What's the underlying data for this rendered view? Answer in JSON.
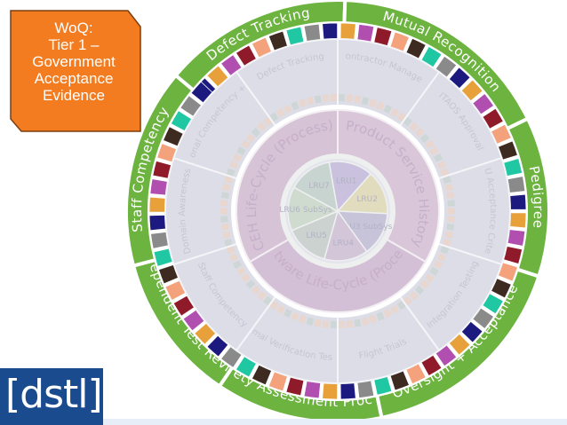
{
  "callout": {
    "lines": [
      "WoQ:",
      "Tier 1 –",
      "Government",
      "Acceptance",
      "Evidence"
    ]
  },
  "logo": {
    "text": "[dstl]"
  },
  "outer_ring": {
    "segments": [
      {
        "label": "Defect Tracking"
      },
      {
        "label": "Mutual Recognition"
      },
      {
        "label": "Pedigree"
      },
      {
        "label": "Oversight + Acceptance"
      },
      {
        "label": "Safety Assessment Process"
      },
      {
        "label": "Independent Test Review"
      },
      {
        "label": "Staff Competency"
      }
    ]
  },
  "middle_ring": {
    "segments": [
      {
        "label": "Defect Tracking"
      },
      {
        "label": "Subcontractor Management"
      },
      {
        "label": "ITAOS Approval"
      },
      {
        "label": "LRU Acceptance Criteria"
      },
      {
        "label": "Integration Testing"
      },
      {
        "label": "Flight Trials"
      },
      {
        "label": "Formal Verification Testing"
      },
      {
        "label": "Staff Competency"
      },
      {
        "label": "Domain Awareness"
      },
      {
        "label": "Organisational Competency + Pedigree"
      }
    ]
  },
  "inner_ring": {
    "segments": [
      {
        "label": "CEH Life-Cycle (Process)"
      },
      {
        "label": "Product Service History"
      },
      {
        "label": "Software Life-Cycle (Process)"
      }
    ]
  },
  "core": {
    "segments": [
      {
        "label": "LRU1"
      },
      {
        "label": "LRU2"
      },
      {
        "label": "LRU3 SubSys"
      },
      {
        "label": "LRU4"
      },
      {
        "label": "LRU5"
      },
      {
        "label": "LRU6 SubSys"
      },
      {
        "label": "LRU7"
      }
    ]
  },
  "colors": {
    "green": "#6db33f",
    "orange": "#f47c20",
    "navy": "#1b4b8f",
    "squares": [
      "#1c1a7e",
      "#e8a13a",
      "#b04fb0",
      "#8f1a2a",
      "#f4a27c",
      "#3d2b22",
      "#1fc7a2",
      "#8a8a8a"
    ]
  }
}
